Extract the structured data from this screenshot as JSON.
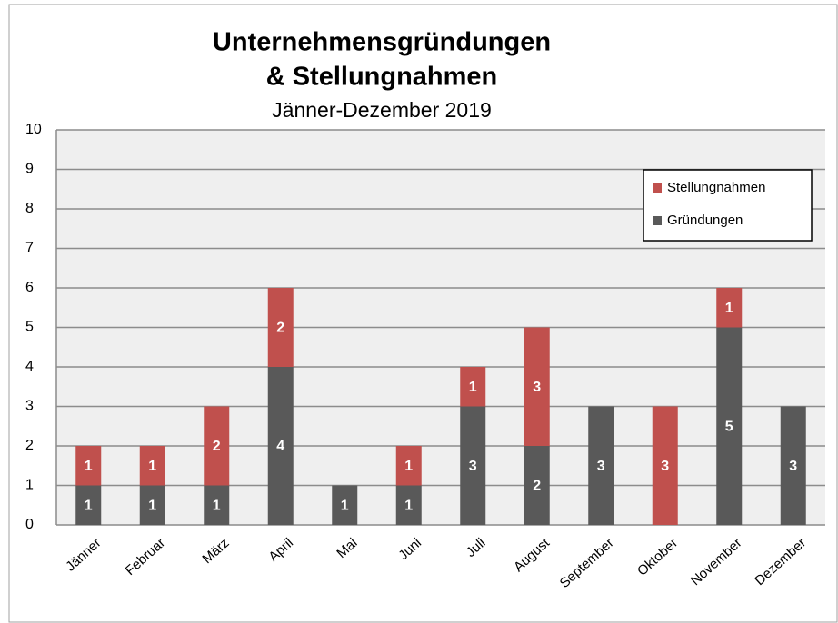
{
  "chart_data": {
    "type": "stacked_bar",
    "title": [
      "Unternehmensgründungen",
      "& Stellungnahmen"
    ],
    "subtitle": "Jänner-Dezember 2019",
    "categories": [
      "Jänner",
      "Februar",
      "März",
      "April",
      "Mai",
      "Juni",
      "Juli",
      "August",
      "September",
      "Oktober",
      "November",
      "Dezember"
    ],
    "series": [
      {
        "name": "Gründungen",
        "color": "#595959",
        "values": [
          1,
          1,
          1,
          4,
          1,
          1,
          3,
          2,
          3,
          0,
          5,
          3
        ]
      },
      {
        "name": "Stellungnahmen",
        "color": "#c0504d",
        "values": [
          1,
          1,
          2,
          2,
          0,
          1,
          1,
          3,
          0,
          3,
          1,
          0
        ]
      }
    ],
    "ylim": [
      0,
      10
    ],
    "yticks": [
      0,
      1,
      2,
      3,
      4,
      5,
      6,
      7,
      8,
      9,
      10
    ],
    "grid": true,
    "legend": "upper right"
  }
}
